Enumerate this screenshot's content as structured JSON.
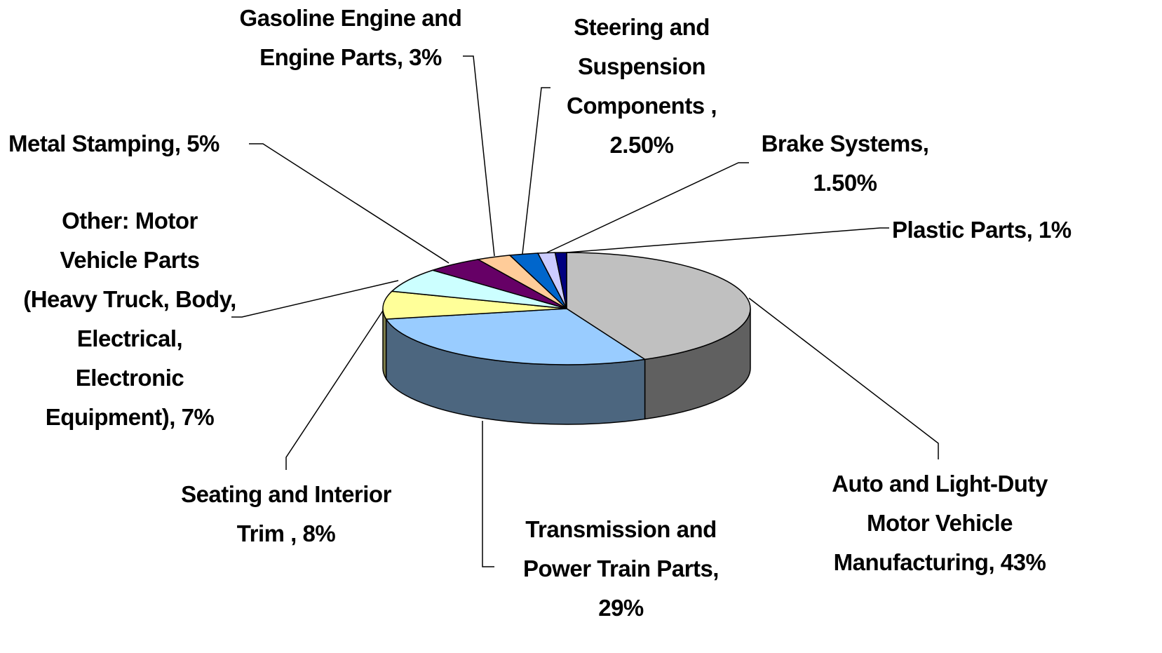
{
  "chart_data": {
    "type": "pie3d",
    "categories": [
      "Auto and Light-Duty Motor Vehicle Manufacturing,",
      "Transmission and Power Train Parts,",
      "Seating and Interior Trim ,",
      "Other: Motor Vehicle Parts (Heavy Truck, Body, Electrical, Electronic Equipment),",
      "Metal Stamping,",
      "Gasoline Engine and Engine Parts,",
      "Steering and Suspension Components ,",
      "Brake Systems,",
      "Plastic Parts,"
    ],
    "values": [
      43,
      29,
      8,
      7,
      5,
      3,
      2.5,
      1.5,
      1
    ],
    "value_labels": [
      "43%",
      "29%",
      "8%",
      "7%",
      "5%",
      "3%",
      "2.50%",
      "1.50%",
      "1%"
    ],
    "colors": [
      "#c0c0c0",
      "#99ccff",
      "#ffff99",
      "#ccffff",
      "#660066",
      "#ffcc99",
      "#0066cc",
      "#ccccff",
      "#000080"
    ]
  }
}
